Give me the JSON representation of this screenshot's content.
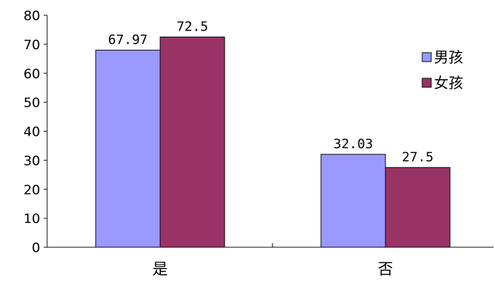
{
  "chart_data": {
    "type": "bar",
    "categories": [
      "是",
      "否"
    ],
    "series": [
      {
        "name": "男孩",
        "values": [
          67.97,
          32.03
        ],
        "labels": [
          "67.97",
          "32.03"
        ],
        "color": "#9999ff"
      },
      {
        "name": "女孩",
        "values": [
          72.5,
          27.5
        ],
        "labels": [
          "72.5",
          "27.5"
        ],
        "color": "#993366"
      }
    ],
    "y_ticks": [
      "0",
      "10",
      "20",
      "30",
      "40",
      "50",
      "60",
      "70",
      "80"
    ],
    "ylim": [
      0,
      80
    ],
    "grid": false,
    "legend_position": "right"
  }
}
